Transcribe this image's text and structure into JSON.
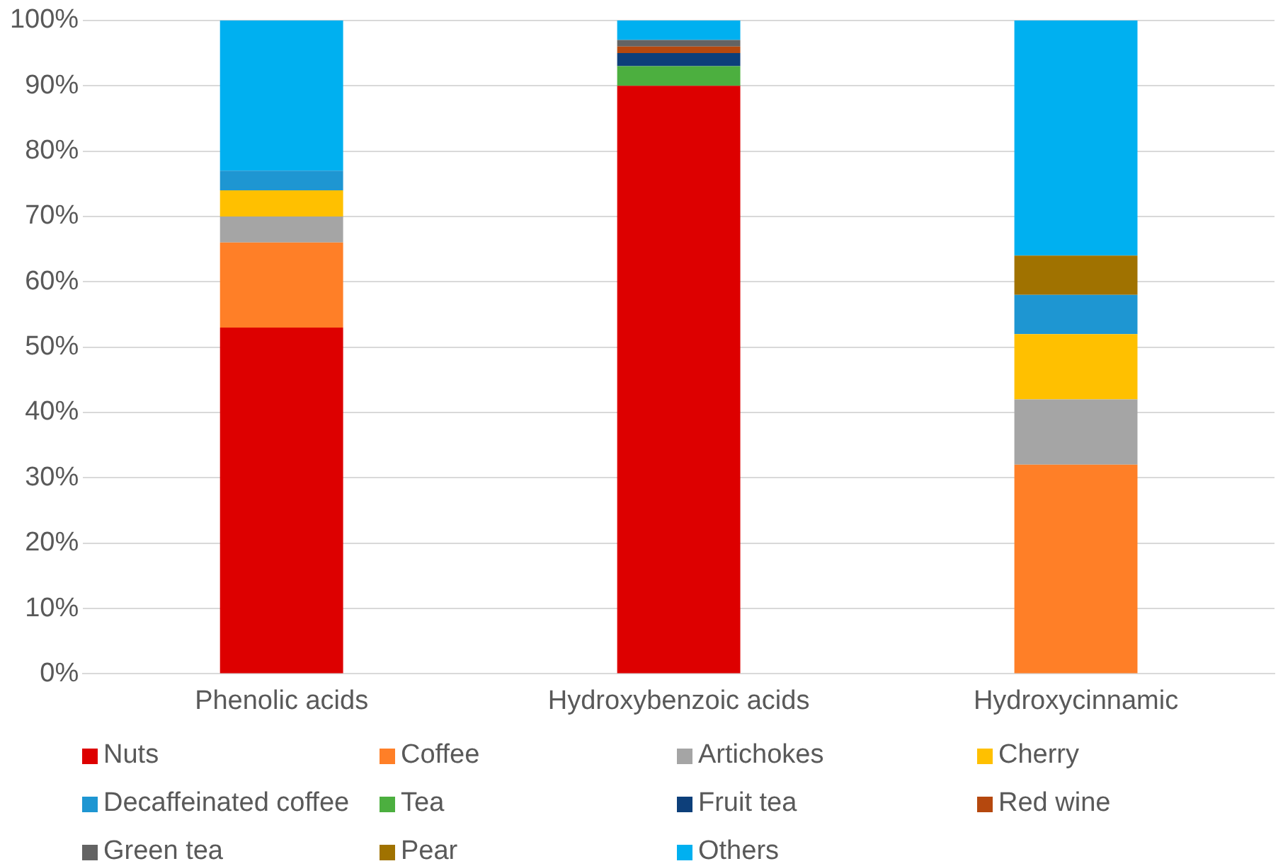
{
  "chart_data": {
    "type": "bar",
    "stacked": true,
    "categories": [
      "Phenolic acids",
      "Hydroxybenzoic acids",
      "Hydroxycinnamic"
    ],
    "ylim": [
      0,
      100
    ],
    "yticks": [
      {
        "value": 0,
        "label": "0%"
      },
      {
        "value": 10,
        "label": "10%"
      },
      {
        "value": 20,
        "label": "20%"
      },
      {
        "value": 30,
        "label": "30%"
      },
      {
        "value": 40,
        "label": "40%"
      },
      {
        "value": 50,
        "label": "50%"
      },
      {
        "value": 60,
        "label": "60%"
      },
      {
        "value": 70,
        "label": "70%"
      },
      {
        "value": 80,
        "label": "80%"
      },
      {
        "value": 90,
        "label": "90%"
      },
      {
        "value": 100,
        "label": "100%"
      }
    ],
    "grid": "y",
    "legend": "bottom",
    "series": [
      {
        "name": "Nuts",
        "color": "#dd0000",
        "values": [
          53,
          90,
          null
        ]
      },
      {
        "name": "Coffee",
        "color": "#ff7f27",
        "values": [
          13,
          null,
          32
        ]
      },
      {
        "name": "Artichokes",
        "color": "#a5a5a5",
        "values": [
          4,
          null,
          10
        ]
      },
      {
        "name": "Cherry",
        "color": "#ffc000",
        "values": [
          4,
          null,
          10
        ]
      },
      {
        "name": "Decaffeinated coffee",
        "color": "#1e96d2",
        "values": [
          3,
          null,
          6
        ]
      },
      {
        "name": "Tea",
        "color": "#4caf3f",
        "values": [
          null,
          3,
          null
        ]
      },
      {
        "name": "Fruit tea",
        "color": "#0d3f7a",
        "values": [
          null,
          2,
          null
        ]
      },
      {
        "name": "Red wine",
        "color": "#b5480e",
        "values": [
          null,
          1,
          null
        ]
      },
      {
        "name": "Green tea",
        "color": "#636363",
        "values": [
          null,
          1,
          null
        ]
      },
      {
        "name": "Pear",
        "color": "#a07200",
        "values": [
          null,
          null,
          6
        ]
      },
      {
        "name": "Others",
        "color": "#00b0f0",
        "values": [
          23,
          3,
          36
        ]
      }
    ]
  }
}
